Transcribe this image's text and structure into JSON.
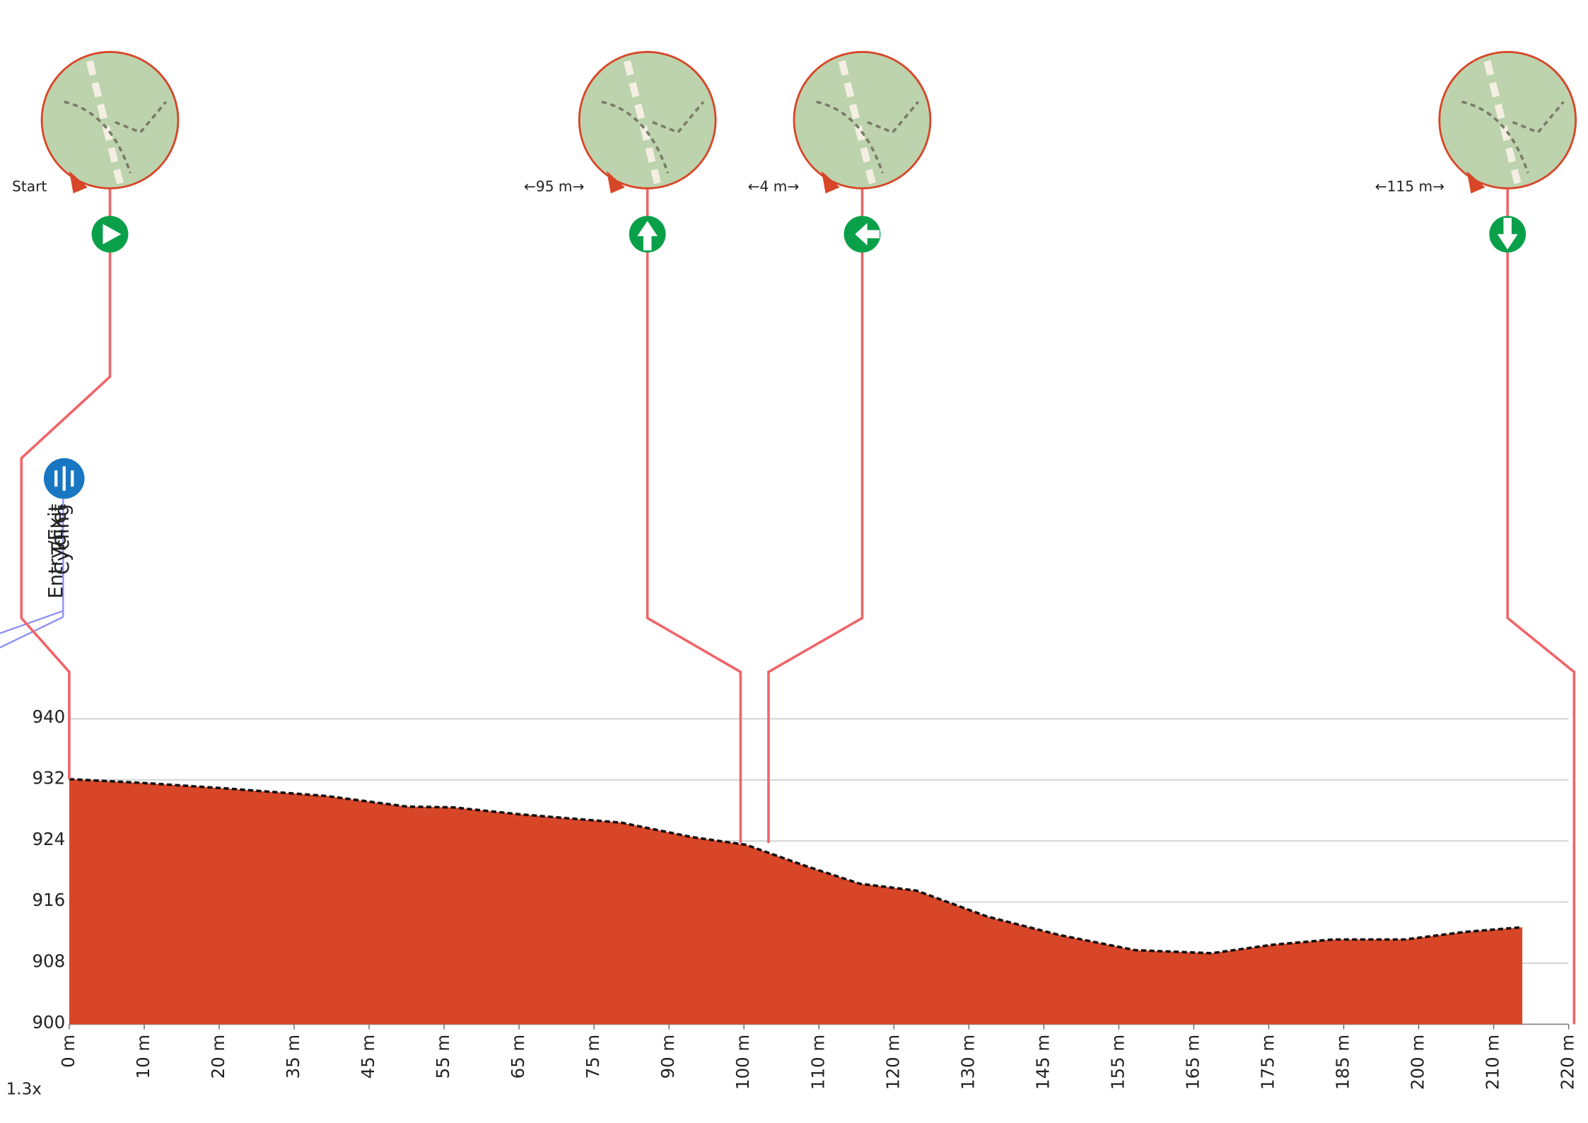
{
  "chart_data": {
    "type": "area",
    "x": [
      0,
      10.8,
      22.7,
      37.6,
      49.6,
      56.3,
      66,
      81,
      91.4,
      99.3,
      107.8,
      116,
      124.3,
      134.7,
      145.2,
      156.4,
      167.6,
      176.5,
      185.5,
      196,
      204.9,
      213.2
    ],
    "values": [
      932.1,
      931.6,
      930.9,
      929.9,
      928.5,
      928.4,
      927.5,
      926.4,
      924.5,
      923.5,
      920.8,
      918.4,
      917.5,
      914.1,
      911.7,
      909.7,
      909.3,
      910.4,
      911.1,
      911.1,
      912.1,
      912.7
    ],
    "color": "#d84628",
    "xlim": [
      0,
      220
    ],
    "xticks": [
      {
        "value": 0,
        "label": "0 m"
      },
      {
        "value": 11,
        "label": "10 m"
      },
      {
        "value": 22,
        "label": "20 m"
      },
      {
        "value": 33,
        "label": "35 m"
      },
      {
        "value": 44,
        "label": "45 m"
      },
      {
        "value": 55,
        "label": "55 m"
      },
      {
        "value": 66,
        "label": "65 m"
      },
      {
        "value": 77,
        "label": "75 m"
      },
      {
        "value": 88,
        "label": "90 m"
      },
      {
        "value": 99,
        "label": "100 m"
      },
      {
        "value": 110,
        "label": "110 m"
      },
      {
        "value": 121,
        "label": "120 m"
      },
      {
        "value": 132,
        "label": "130 m"
      },
      {
        "value": 143,
        "label": "145 m"
      },
      {
        "value": 154,
        "label": "155 m"
      },
      {
        "value": 165,
        "label": "165 m"
      },
      {
        "value": 176,
        "label": "175 m"
      },
      {
        "value": 187,
        "label": "185 m"
      },
      {
        "value": 198,
        "label": "200 m"
      },
      {
        "value": 209,
        "label": "210 m"
      },
      {
        "value": 220,
        "label": "220 m"
      }
    ],
    "ylim": [
      900,
      940
    ],
    "yticks": [
      900,
      908,
      916,
      924,
      932,
      940
    ],
    "grid": true,
    "waypoints": [
      {
        "label": "Start",
        "x": 0
      },
      {
        "label": "←95 m→",
        "x": 98.5
      },
      {
        "label": "←4 m→",
        "x": 102.6
      },
      {
        "label": "←115 m→",
        "x": 220.8
      }
    ],
    "pois": [
      "Entry/Exit",
      "Toilet",
      "Cycling"
    ],
    "zoom_label": "1.3x"
  }
}
